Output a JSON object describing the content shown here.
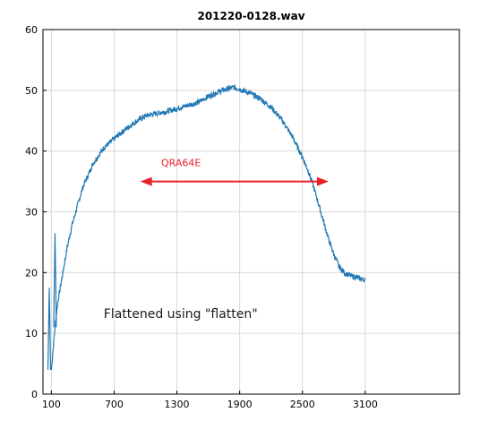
{
  "chart_data": {
    "type": "line",
    "title": "201220-0128.wav",
    "xlabel": "",
    "ylabel": "",
    "xlim": [
      20,
      4000
    ],
    "ylim": [
      0,
      60
    ],
    "xticks": [
      100,
      700,
      1300,
      1900,
      2500,
      3100
    ],
    "yticks": [
      0,
      10,
      20,
      30,
      40,
      50,
      60
    ],
    "xtick_labels": [
      "100",
      "700",
      "1300",
      "1900",
      "2500",
      "3100"
    ],
    "ytick_labels": [
      "0",
      "10",
      "20",
      "30",
      "40",
      "50",
      "60"
    ],
    "grid": true,
    "legend": "none",
    "series": [
      {
        "color": "#1f77b4",
        "x": [
          100,
          120,
          140,
          160,
          180,
          200,
          250,
          300,
          350,
          400,
          500,
          600,
          700,
          800,
          900,
          1000,
          1100,
          1200,
          1300,
          1400,
          1500,
          1600,
          1700,
          1800,
          1850,
          1900,
          2000,
          2100,
          2200,
          2300,
          2400,
          2500,
          2550,
          2600,
          2650,
          2700,
          2750,
          2800,
          2850,
          2900,
          2950,
          3000,
          3050,
          3100
        ],
        "y": [
          4,
          8,
          12,
          15,
          17,
          19,
          24,
          28,
          31,
          34,
          38,
          40.5,
          42,
          43.5,
          44.8,
          45.8,
          46.2,
          46.5,
          47,
          47.5,
          48,
          49,
          49.8,
          50.3,
          50.5,
          50.2,
          49.5,
          48.6,
          47.2,
          45.2,
          42.5,
          39,
          37,
          34.5,
          31.5,
          28.5,
          25.5,
          23,
          21,
          20,
          19.5,
          19.3,
          19,
          18.8
        ]
      }
    ],
    "spikes": [
      {
        "x": 80,
        "y": 17.5
      },
      {
        "x": 135,
        "y": 26.5
      }
    ],
    "annotations": [
      {
        "text": "QRA64E",
        "x": 1150,
        "y": 37.5,
        "color": "#e8202a"
      },
      {
        "text": "Flattened using \"flatten\"",
        "x": 600,
        "y": 12.5,
        "color": "#1a1a1a"
      }
    ],
    "arrow": {
      "x1": 950,
      "x2": 2750,
      "y": 35,
      "color": "#e8202a"
    }
  }
}
